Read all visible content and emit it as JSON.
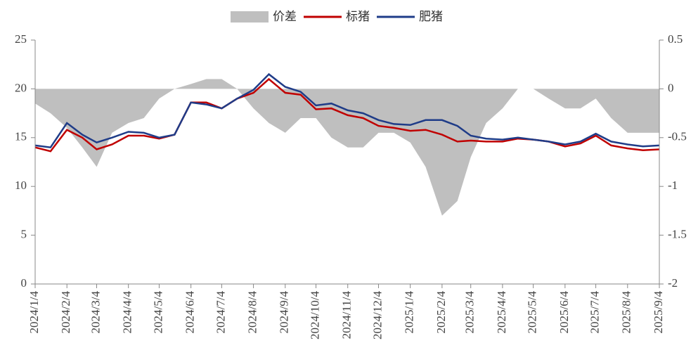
{
  "chart_data": {
    "type": "line",
    "x": [
      "2024/1/4",
      "2024/1/19",
      "2024/2/4",
      "2024/2/19",
      "2024/3/4",
      "2024/3/19",
      "2024/4/4",
      "2024/4/19",
      "2024/5/4",
      "2024/5/19",
      "2024/6/4",
      "2024/6/19",
      "2024/7/4",
      "2024/7/19",
      "2024/8/4",
      "2024/8/19",
      "2024/9/4",
      "2024/9/19",
      "2024/10/4",
      "2024/10/19",
      "2024/11/4",
      "2024/11/19",
      "2024/12/4",
      "2024/12/19",
      "2025/1/4",
      "2025/1/19",
      "2025/2/4",
      "2025/2/19",
      "2025/3/4",
      "2025/3/19",
      "2025/4/4",
      "2025/4/19",
      "2025/5/4",
      "2025/5/19",
      "2025/6/4",
      "2025/6/19",
      "2025/7/4",
      "2025/7/19",
      "2025/8/4",
      "2025/8/19",
      "2025/9/4"
    ],
    "series": [
      {
        "name": "价差",
        "color": "#bfbfbf",
        "axis": "y2",
        "kind": "area",
        "values": [
          -0.15,
          -0.25,
          -0.4,
          -0.6,
          -0.8,
          -0.45,
          -0.35,
          -0.3,
          -0.1,
          0.0,
          0.05,
          0.1,
          0.1,
          0.0,
          -0.2,
          -0.35,
          -0.45,
          -0.3,
          -0.3,
          -0.5,
          -0.6,
          -0.6,
          -0.45,
          -0.45,
          -0.55,
          -0.8,
          -1.3,
          -1.15,
          -0.7,
          -0.35,
          -0.2,
          0.0,
          0.0,
          -0.1,
          -0.2,
          -0.2,
          -0.1,
          -0.3,
          -0.45,
          -0.45,
          -0.45
        ]
      },
      {
        "name": "标猪",
        "color": "#c00000",
        "values": [
          14.0,
          13.6,
          15.8,
          15.0,
          13.8,
          14.3,
          15.2,
          15.2,
          14.9,
          15.3,
          18.6,
          18.6,
          18.0,
          19.0,
          19.6,
          21.0,
          19.6,
          19.4,
          17.9,
          18.0,
          17.3,
          17.0,
          16.2,
          16.0,
          15.7,
          15.8,
          15.3,
          14.6,
          14.7,
          14.6,
          14.6,
          14.9,
          14.8,
          14.6,
          14.1,
          14.4,
          15.2,
          14.2,
          13.9,
          13.7,
          13.8
        ]
      },
      {
        "name": "肥猪",
        "color": "#1f3c88",
        "values": [
          14.2,
          14.0,
          16.5,
          15.3,
          14.5,
          15.0,
          15.6,
          15.5,
          15.0,
          15.3,
          18.6,
          18.4,
          18.0,
          19.0,
          19.9,
          21.5,
          20.2,
          19.7,
          18.3,
          18.5,
          17.8,
          17.5,
          16.8,
          16.4,
          16.3,
          16.8,
          16.8,
          16.2,
          15.2,
          14.9,
          14.8,
          15.0,
          14.8,
          14.6,
          14.3,
          14.6,
          15.4,
          14.6,
          14.3,
          14.1,
          14.2
        ]
      }
    ],
    "xticks": [
      "2024/1/4",
      "2024/2/4",
      "2024/3/4",
      "2024/4/4",
      "2024/5/4",
      "2024/6/4",
      "2024/7/4",
      "2024/8/4",
      "2024/9/4",
      "2024/10/4",
      "2024/11/4",
      "2024/12/4",
      "2025/1/4",
      "2025/2/4",
      "2025/3/4",
      "2025/4/4",
      "2025/5/4",
      "2025/6/4",
      "2025/7/4",
      "2025/8/4",
      "2025/9/4"
    ],
    "ylim": [
      0,
      25
    ],
    "yticks": [
      0,
      5,
      10,
      15,
      20,
      25
    ],
    "y2lim": [
      -2,
      0.5
    ],
    "y2ticks": [
      -2,
      -1.5,
      -1,
      -0.5,
      0,
      0.5
    ]
  }
}
